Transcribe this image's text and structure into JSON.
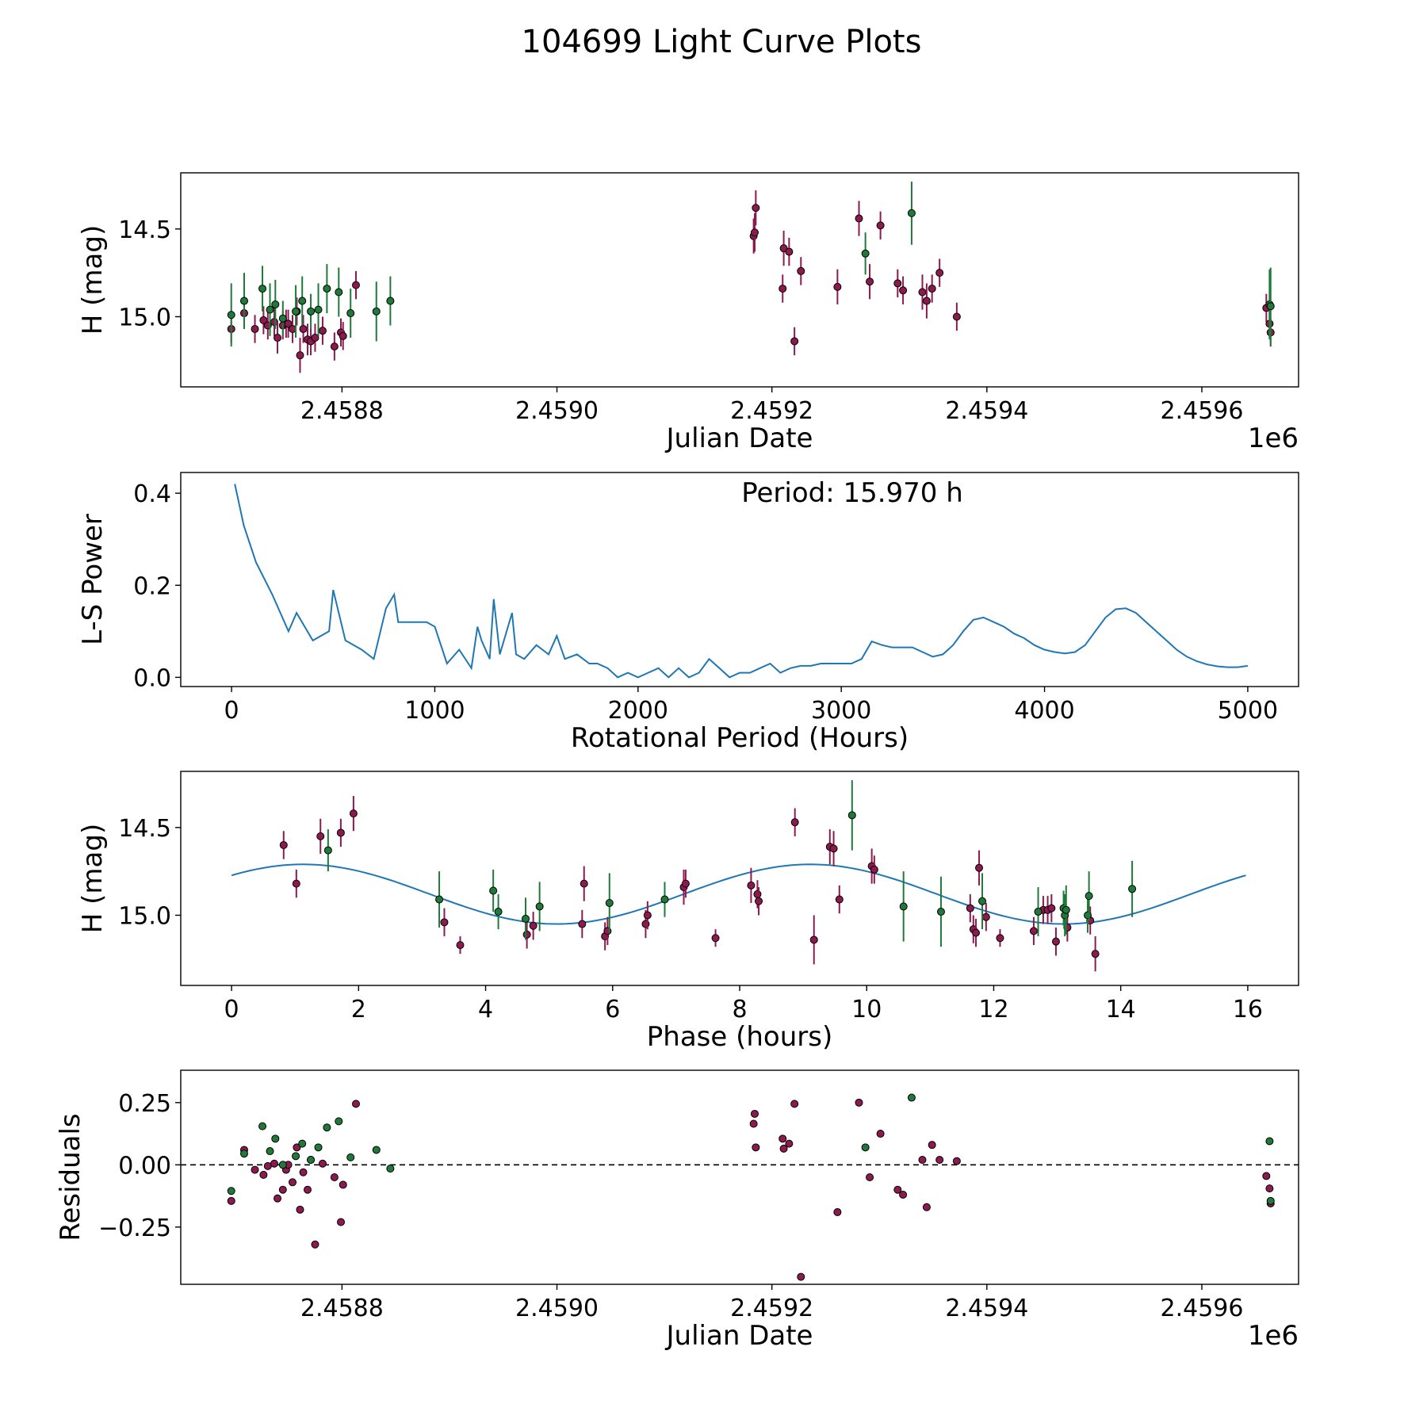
{
  "figure_title": "104699 Light Curve Plots",
  "colors": {
    "magenta": "#8c1a4f",
    "green": "#1f7a3a",
    "curve": "#1f77b4",
    "frame": "#000000"
  },
  "chart_data": [
    {
      "id": "lightcurve",
      "type": "scatter",
      "title": "",
      "xlabel": "Julian Date",
      "ylabel": "H (mag)",
      "x_offset_label": "1e6",
      "xlim": [
        2458650,
        2459690
      ],
      "ylim": [
        14.18,
        15.4
      ],
      "yinvert": true,
      "xticks": [
        2458800,
        2459000,
        2459200,
        2459400,
        2459600
      ],
      "xtick_labels": [
        "2.4588",
        "2.4590",
        "2.4592",
        "2.4594",
        "2.4596"
      ],
      "yticks": [
        14.5,
        15.0
      ],
      "ytick_labels": [
        "14.5",
        "15.0"
      ],
      "series": [
        {
          "name": "magenta",
          "color": "#8c1a4f",
          "x": [
            2458697,
            2458709,
            2458719,
            2458727,
            2458731,
            2458737,
            2458740,
            2458745,
            2458748,
            2458750,
            2458754,
            2458758,
            2458761,
            2458764,
            2458768,
            2458771,
            2458775,
            2458782,
            2458793,
            2458799,
            2458801,
            2458813,
            2459183,
            2459184,
            2459185,
            2459210,
            2459211,
            2459216,
            2459221,
            2459227,
            2459261,
            2459281,
            2459291,
            2459301,
            2459317,
            2459322,
            2459340,
            2459344,
            2459349,
            2459356,
            2459372,
            2459660,
            2459663,
            2459664
          ],
          "y": [
            15.07,
            14.98,
            15.07,
            15.02,
            15.05,
            15.03,
            15.12,
            15.05,
            15.04,
            15.04,
            15.07,
            14.97,
            15.22,
            15.07,
            15.13,
            15.14,
            15.12,
            15.08,
            15.17,
            15.09,
            15.11,
            14.82,
            14.54,
            14.52,
            14.38,
            14.84,
            14.61,
            14.63,
            15.14,
            14.74,
            14.83,
            14.44,
            14.8,
            14.48,
            14.81,
            14.85,
            14.86,
            14.91,
            14.84,
            14.75,
            15.0,
            14.95,
            15.04,
            15.09
          ],
          "err": [
            0.08,
            0.08,
            0.08,
            0.08,
            0.08,
            0.08,
            0.09,
            0.08,
            0.08,
            0.08,
            0.08,
            0.08,
            0.1,
            0.08,
            0.09,
            0.08,
            0.08,
            0.08,
            0.08,
            0.08,
            0.08,
            0.08,
            0.1,
            0.11,
            0.1,
            0.08,
            0.1,
            0.08,
            0.08,
            0.08,
            0.1,
            0.1,
            0.1,
            0.08,
            0.08,
            0.08,
            0.1,
            0.1,
            0.08,
            0.08,
            0.08,
            0.08,
            0.08,
            0.08
          ]
        },
        {
          "name": "green",
          "color": "#1f7a3a",
          "x": [
            2458697,
            2458709,
            2458726,
            2458733,
            2458738,
            2458745,
            2458757,
            2458763,
            2458771,
            2458778,
            2458786,
            2458797,
            2458808,
            2458832,
            2458845,
            2459287,
            2459330,
            2459663,
            2459664
          ],
          "y": [
            14.99,
            14.91,
            14.84,
            14.96,
            14.93,
            15.01,
            14.97,
            14.91,
            14.97,
            14.96,
            14.84,
            14.86,
            14.98,
            14.97,
            14.91,
            14.64,
            14.41,
            14.93,
            14.94
          ],
          "err": [
            0.18,
            0.16,
            0.13,
            0.15,
            0.14,
            0.1,
            0.15,
            0.14,
            0.1,
            0.15,
            0.14,
            0.14,
            0.14,
            0.17,
            0.14,
            0.12,
            0.18,
            0.2,
            0.22
          ]
        }
      ]
    },
    {
      "id": "periodogram",
      "type": "line",
      "title": "",
      "xlabel": "Rotational Period (Hours)",
      "ylabel": "L-S Power",
      "annotation": "Period: 15.970 h",
      "xlim": [
        -250,
        5250
      ],
      "ylim": [
        -0.02,
        0.445
      ],
      "xticks": [
        0,
        1000,
        2000,
        3000,
        4000,
        5000
      ],
      "xtick_labels": [
        "0",
        "1000",
        "2000",
        "3000",
        "4000",
        "5000"
      ],
      "yticks": [
        0.0,
        0.2,
        0.4
      ],
      "ytick_labels": [
        "0.0",
        "0.2",
        "0.4"
      ],
      "series": [
        {
          "name": "L-S power",
          "color": "#1f77b4",
          "x": [
            15.97,
            60,
            120,
            200,
            280,
            320,
            400,
            480,
            500,
            560,
            640,
            700,
            760,
            800,
            820,
            900,
            960,
            1000,
            1060,
            1120,
            1180,
            1210,
            1230,
            1270,
            1290,
            1320,
            1380,
            1400,
            1440,
            1500,
            1560,
            1600,
            1640,
            1700,
            1760,
            1800,
            1850,
            1900,
            1950,
            2000,
            2050,
            2100,
            2150,
            2200,
            2250,
            2300,
            2350,
            2400,
            2450,
            2500,
            2550,
            2600,
            2650,
            2700,
            2750,
            2800,
            2850,
            2900,
            2950,
            3000,
            3050,
            3100,
            3150,
            3200,
            3250,
            3300,
            3350,
            3400,
            3450,
            3500,
            3550,
            3600,
            3650,
            3700,
            3750,
            3800,
            3850,
            3900,
            3950,
            4000,
            4050,
            4100,
            4150,
            4200,
            4250,
            4300,
            4350,
            4400,
            4450,
            4500,
            4550,
            4600,
            4650,
            4700,
            4750,
            4800,
            4850,
            4900,
            4950,
            5000
          ],
          "y": [
            0.42,
            0.33,
            0.25,
            0.18,
            0.1,
            0.14,
            0.08,
            0.1,
            0.19,
            0.08,
            0.06,
            0.04,
            0.15,
            0.18,
            0.12,
            0.12,
            0.12,
            0.11,
            0.03,
            0.06,
            0.02,
            0.11,
            0.08,
            0.04,
            0.17,
            0.05,
            0.14,
            0.05,
            0.04,
            0.07,
            0.05,
            0.09,
            0.04,
            0.05,
            0.03,
            0.03,
            0.02,
            0.0,
            0.01,
            0.0,
            0.01,
            0.02,
            0.0,
            0.02,
            0.0,
            0.01,
            0.04,
            0.02,
            0.0,
            0.01,
            0.01,
            0.02,
            0.03,
            0.01,
            0.02,
            0.025,
            0.025,
            0.03,
            0.03,
            0.03,
            0.03,
            0.04,
            0.078,
            0.07,
            0.065,
            0.065,
            0.065,
            0.055,
            0.045,
            0.05,
            0.07,
            0.1,
            0.125,
            0.13,
            0.12,
            0.11,
            0.095,
            0.085,
            0.07,
            0.06,
            0.055,
            0.052,
            0.055,
            0.07,
            0.1,
            0.13,
            0.148,
            0.15,
            0.14,
            0.12,
            0.1,
            0.08,
            0.06,
            0.045,
            0.035,
            0.028,
            0.024,
            0.022,
            0.022,
            0.025
          ]
        }
      ]
    },
    {
      "id": "phased",
      "type": "scatter",
      "title": "",
      "xlabel": "Phase (hours)",
      "ylabel": "H (mag)",
      "xlim": [
        -0.8,
        16.8
      ],
      "ylim": [
        14.18,
        15.4
      ],
      "yinvert": true,
      "xticks": [
        0,
        2,
        4,
        6,
        8,
        10,
        12,
        14,
        16
      ],
      "xtick_labels": [
        "0",
        "2",
        "4",
        "6",
        "8",
        "10",
        "12",
        "14",
        "16"
      ],
      "yticks": [
        14.5,
        15.0
      ],
      "ytick_labels": [
        "14.5",
        "15.0"
      ],
      "model": {
        "name": "fit",
        "color": "#1f77b4",
        "mean": 14.88,
        "amplitude": 0.17,
        "period": 7.985,
        "peak_phase": 5.12,
        "x_range": [
          0,
          15.97
        ]
      },
      "series": [
        {
          "name": "magenta",
          "color": "#8c1a4f",
          "x": [
            0.82,
            1.02,
            1.4,
            1.72,
            1.92,
            3.35,
            3.6,
            4.65,
            4.75,
            5.52,
            5.55,
            5.88,
            5.92,
            6.52,
            6.55,
            7.12,
            7.15,
            7.62,
            8.18,
            8.28,
            8.3,
            9.17,
            8.87,
            9.42,
            9.48,
            9.57,
            10.08,
            10.12,
            11.63,
            11.68,
            11.72,
            11.77,
            11.88,
            12.1,
            12.63,
            12.78,
            12.85,
            12.91,
            12.98,
            13.16,
            13.52,
            13.6
          ],
          "y": [
            14.6,
            14.82,
            14.55,
            14.53,
            14.42,
            15.04,
            15.17,
            15.11,
            15.06,
            15.05,
            14.82,
            15.12,
            15.09,
            15.05,
            15.0,
            14.84,
            14.82,
            15.13,
            14.83,
            14.88,
            14.92,
            15.14,
            14.47,
            14.61,
            14.62,
            14.91,
            14.72,
            14.74,
            14.96,
            15.08,
            15.1,
            14.73,
            15.01,
            15.13,
            15.09,
            14.97,
            14.97,
            14.96,
            15.15,
            15.07,
            15.03,
            15.22
          ],
          "err": [
            0.08,
            0.08,
            0.1,
            0.08,
            0.1,
            0.08,
            0.05,
            0.08,
            0.08,
            0.08,
            0.1,
            0.08,
            0.08,
            0.08,
            0.08,
            0.1,
            0.08,
            0.05,
            0.1,
            0.08,
            0.08,
            0.14,
            0.08,
            0.1,
            0.1,
            0.08,
            0.1,
            0.08,
            0.08,
            0.08,
            0.08,
            0.1,
            0.08,
            0.05,
            0.08,
            0.08,
            0.08,
            0.08,
            0.08,
            0.08,
            0.08,
            0.1
          ]
        },
        {
          "name": "green",
          "color": "#1f7a3a",
          "x": [
            1.52,
            3.27,
            4.12,
            4.2,
            4.63,
            4.85,
            5.95,
            6.82,
            9.77,
            10.58,
            11.17,
            11.82,
            12.7,
            13.1,
            13.12,
            13.14,
            13.48,
            13.5,
            14.18
          ],
          "y": [
            14.63,
            14.91,
            14.86,
            14.98,
            15.02,
            14.95,
            14.93,
            14.91,
            14.43,
            14.95,
            14.98,
            14.92,
            14.98,
            14.96,
            15.0,
            14.97,
            15.0,
            14.89,
            14.85
          ],
          "err": [
            0.12,
            0.16,
            0.12,
            0.1,
            0.12,
            0.14,
            0.17,
            0.1,
            0.2,
            0.2,
            0.2,
            0.16,
            0.14,
            0.1,
            0.12,
            0.14,
            0.1,
            0.14,
            0.16
          ]
        }
      ]
    },
    {
      "id": "residuals",
      "type": "scatter",
      "title": "",
      "xlabel": "Julian Date",
      "ylabel": "Residuals",
      "x_offset_label": "1e6",
      "xlim": [
        2458650,
        2459690
      ],
      "ylim": [
        -0.48,
        0.38
      ],
      "xticks": [
        2458800,
        2459000,
        2459200,
        2459400,
        2459600
      ],
      "xtick_labels": [
        "2.4588",
        "2.4590",
        "2.4592",
        "2.4594",
        "2.4596"
      ],
      "yticks": [
        -0.25,
        0.0,
        0.25
      ],
      "ytick_labels": [
        "−0.25",
        "0.00",
        "0.25"
      ],
      "reference_line": 0.0,
      "series": [
        {
          "name": "magenta",
          "color": "#8c1a4f",
          "x": [
            2458697,
            2458709,
            2458719,
            2458727,
            2458731,
            2458737,
            2458740,
            2458745,
            2458748,
            2458750,
            2458754,
            2458758,
            2458761,
            2458764,
            2458768,
            2458771,
            2458775,
            2458782,
            2458793,
            2458799,
            2458801,
            2458813,
            2459183,
            2459184,
            2459185,
            2459210,
            2459211,
            2459216,
            2459221,
            2459227,
            2459261,
            2459281,
            2459291,
            2459301,
            2459317,
            2459322,
            2459340,
            2459344,
            2459349,
            2459356,
            2459372,
            2459660,
            2459663,
            2459664
          ],
          "y": [
            -0.145,
            0.06,
            -0.02,
            -0.04,
            -0.005,
            0.005,
            -0.135,
            -0.1,
            -0.02,
            0.0,
            -0.07,
            0.07,
            -0.18,
            -0.03,
            -0.1,
            0.02,
            -0.32,
            0.005,
            -0.05,
            -0.23,
            -0.08,
            0.245,
            0.165,
            0.205,
            0.07,
            0.105,
            0.065,
            0.085,
            0.245,
            -0.45,
            -0.19,
            0.25,
            -0.05,
            0.125,
            -0.1,
            -0.12,
            0.02,
            -0.17,
            0.08,
            0.02,
            0.015,
            -0.045,
            -0.095,
            -0.155
          ],
          "err": []
        },
        {
          "name": "green",
          "color": "#1f7a3a",
          "x": [
            2458697,
            2458709,
            2458726,
            2458733,
            2458738,
            2458745,
            2458757,
            2458763,
            2458771,
            2458778,
            2458786,
            2458797,
            2458808,
            2458832,
            2458845,
            2459287,
            2459330,
            2459663,
            2459664
          ],
          "y": [
            -0.105,
            0.045,
            0.155,
            0.055,
            0.105,
            0.0,
            0.035,
            0.085,
            0.02,
            0.07,
            0.15,
            0.175,
            0.03,
            0.06,
            -0.015,
            0.07,
            0.27,
            0.095,
            -0.145
          ],
          "err": []
        }
      ]
    }
  ]
}
